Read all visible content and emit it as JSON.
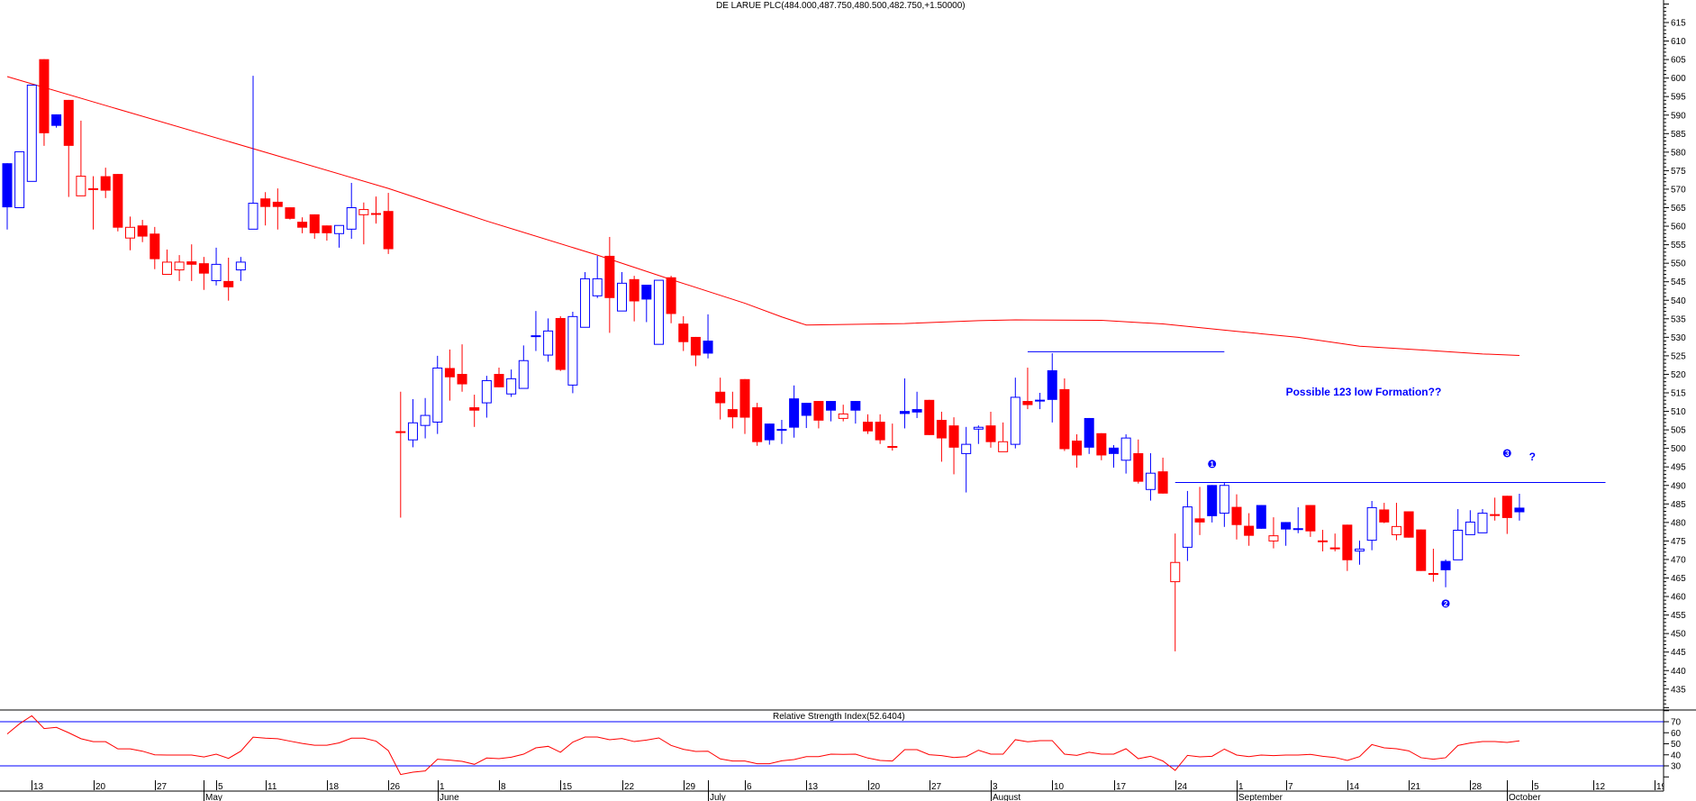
{
  "chart_data": {
    "type": "candlestick",
    "title": "DE LARUE PLC(484.000,487.750,480.500,482.750,+1.50000)",
    "colors": {
      "b": "#0000FF",
      "r": "#FF0000",
      "ma": "#FF0000",
      "rsi": "#FF0000",
      "lines": "#0000FF"
    },
    "price_axis": {
      "min": 435,
      "max": 615,
      "major_step": 5,
      "minor_step": 1,
      "position": "right"
    },
    "candles_fields": [
      "date",
      "open",
      "high",
      "low",
      "close",
      "color"
    ],
    "candles": [
      [
        "04-07",
        577.0,
        577.0,
        559.1,
        565.1,
        "b"
      ],
      [
        "04-08",
        565.0,
        580.1,
        565.0,
        580.1,
        "b"
      ],
      [
        "04-09",
        572.1,
        598.1,
        572.1,
        598.1,
        "b"
      ],
      [
        "04-14",
        605.1,
        605.1,
        581.7,
        585.1,
        "r"
      ],
      [
        "04-15",
        590.2,
        590.2,
        586.6,
        587.1,
        "b"
      ],
      [
        "04-16",
        594.1,
        594.1,
        567.9,
        581.7,
        "r"
      ],
      [
        "04-17",
        568.2,
        588.5,
        568.2,
        573.5,
        "r"
      ],
      [
        "04-20",
        570.0,
        573.5,
        559.1,
        569.9,
        "r"
      ],
      [
        "04-21",
        573.5,
        575.8,
        567.6,
        569.6,
        "r"
      ],
      [
        "04-22",
        574.1,
        574.1,
        558.6,
        559.6,
        "r"
      ],
      [
        "04-23",
        556.8,
        562.6,
        553.5,
        559.7,
        "r"
      ],
      [
        "04-24",
        560.2,
        561.7,
        555.7,
        557.2,
        "r"
      ],
      [
        "04-27",
        558.0,
        559.8,
        548.4,
        551.1,
        "r"
      ],
      [
        "04-28",
        547.0,
        553.7,
        547.0,
        550.3,
        "r"
      ],
      [
        "04-29",
        548.2,
        552.2,
        545.2,
        550.3,
        "r"
      ],
      [
        "04-30",
        550.5,
        555.1,
        545.2,
        549.6,
        "r"
      ],
      [
        "05-01",
        550.0,
        551.7,
        542.8,
        547.2,
        "r"
      ],
      [
        "05-05",
        545.3,
        554.2,
        544.0,
        549.7,
        "b"
      ],
      [
        "05-06",
        545.2,
        551.5,
        539.9,
        543.5,
        "r"
      ],
      [
        "05-07",
        548.2,
        551.7,
        545.2,
        550.3,
        "b"
      ],
      [
        "05-08",
        559.2,
        600.6,
        559.2,
        566.2,
        "b"
      ],
      [
        "05-11",
        567.5,
        569.2,
        560.2,
        565.2,
        "r"
      ],
      [
        "05-12",
        566.6,
        570.2,
        559.1,
        565.2,
        "r"
      ],
      [
        "05-13",
        565.1,
        565.1,
        561.8,
        562.0,
        "r"
      ],
      [
        "05-14",
        561.2,
        562.4,
        558.1,
        559.6,
        "r"
      ],
      [
        "05-15",
        563.2,
        563.2,
        556.6,
        558.1,
        "r"
      ],
      [
        "05-18",
        560.2,
        560.2,
        556.1,
        558.1,
        "r"
      ],
      [
        "05-19",
        558.0,
        560.2,
        554.2,
        560.2,
        "b"
      ],
      [
        "05-20",
        559.2,
        571.7,
        556.6,
        565.0,
        "b"
      ],
      [
        "05-21",
        563.1,
        566.4,
        555.1,
        564.5,
        "r"
      ],
      [
        "05-22",
        563.3,
        568.0,
        560.7,
        563.3,
        "r"
      ],
      [
        "05-26",
        564.1,
        569.0,
        552.5,
        553.8,
        "r"
      ],
      [
        "05-27",
        504.4,
        515.3,
        481.3,
        504.4,
        "r"
      ],
      [
        "05-28",
        502.3,
        513.3,
        500.3,
        506.9,
        "b"
      ],
      [
        "05-29",
        506.2,
        513.6,
        502.7,
        508.9,
        "b"
      ],
      [
        "06-01",
        507.1,
        525.0,
        503.9,
        521.7,
        "b"
      ],
      [
        "06-02",
        521.7,
        526.7,
        512.9,
        519.2,
        "r"
      ],
      [
        "06-03",
        520.1,
        528.1,
        515.3,
        517.3,
        "r"
      ],
      [
        "06-04",
        511.1,
        514.5,
        505.8,
        510.2,
        "r"
      ],
      [
        "06-05",
        512.3,
        519.6,
        508.3,
        518.3,
        "b"
      ],
      [
        "06-08",
        520.1,
        521.8,
        516.5,
        516.5,
        "r"
      ],
      [
        "06-09",
        514.7,
        521.3,
        513.9,
        518.8,
        "b"
      ],
      [
        "06-10",
        516.2,
        527.8,
        516.2,
        523.7,
        "b"
      ],
      [
        "06-11",
        530.3,
        537.1,
        526.3,
        530.3,
        "b"
      ],
      [
        "06-12",
        525.2,
        535.1,
        523.4,
        531.7,
        "b"
      ],
      [
        "06-15",
        535.2,
        535.7,
        520.9,
        521.2,
        "r"
      ],
      [
        "06-16",
        517.1,
        536.9,
        514.9,
        535.6,
        "b"
      ],
      [
        "06-17",
        532.7,
        547.6,
        532.7,
        545.8,
        "b"
      ],
      [
        "06-18",
        541.2,
        552.0,
        540.6,
        545.8,
        "b"
      ],
      [
        "06-19",
        552.0,
        557.1,
        531.2,
        540.6,
        "r"
      ],
      [
        "06-22",
        537.1,
        547.6,
        537.1,
        544.6,
        "b"
      ],
      [
        "06-23",
        545.7,
        546.6,
        534.3,
        539.7,
        "r"
      ],
      [
        "06-24",
        544.2,
        544.2,
        534.1,
        540.2,
        "b"
      ],
      [
        "06-25",
        528.1,
        545.4,
        528.1,
        545.4,
        "b"
      ],
      [
        "06-26",
        546.2,
        546.6,
        533.8,
        536.3,
        "r"
      ],
      [
        "06-29",
        533.7,
        535.7,
        526.3,
        528.7,
        "r"
      ],
      [
        "06-30",
        530.1,
        530.1,
        522.2,
        525.1,
        "r"
      ],
      [
        "07-01",
        529.1,
        536.2,
        524.3,
        525.6,
        "b"
      ],
      [
        "07-02",
        515.3,
        519.1,
        507.8,
        512.2,
        "r"
      ],
      [
        "07-03",
        510.6,
        515.3,
        505.4,
        508.4,
        "r"
      ],
      [
        "07-06",
        518.7,
        518.7,
        503.9,
        508.3,
        "r"
      ],
      [
        "07-07",
        511.1,
        512.3,
        500.7,
        501.7,
        "r"
      ],
      [
        "07-08",
        506.7,
        506.7,
        501.0,
        502.2,
        "b"
      ],
      [
        "07-09",
        505.0,
        507.7,
        501.2,
        505.0,
        "b"
      ],
      [
        "07-10",
        513.5,
        517.0,
        502.9,
        505.6,
        "b"
      ],
      [
        "07-13",
        512.3,
        512.3,
        505.5,
        508.8,
        "b"
      ],
      [
        "07-14",
        512.8,
        512.8,
        505.4,
        507.5,
        "r"
      ],
      [
        "07-15",
        512.8,
        512.8,
        507.3,
        510.2,
        "b"
      ],
      [
        "07-16",
        508.1,
        511.8,
        507.3,
        509.3,
        "r"
      ],
      [
        "07-17",
        512.8,
        512.8,
        506.7,
        510.2,
        "b"
      ],
      [
        "07-20",
        507.2,
        509.2,
        503.9,
        504.6,
        "r"
      ],
      [
        "07-21",
        507.2,
        509.2,
        501.2,
        502.2,
        "r"
      ],
      [
        "07-22",
        500.4,
        506.7,
        499.4,
        500.4,
        "r"
      ],
      [
        "07-23",
        510.1,
        518.9,
        505.4,
        509.3,
        "b"
      ],
      [
        "07-24",
        510.6,
        515.3,
        508.2,
        509.7,
        "b"
      ],
      [
        "07-27",
        513.1,
        513.1,
        503.6,
        503.6,
        "r"
      ],
      [
        "07-28",
        507.7,
        509.9,
        496.4,
        502.7,
        "r"
      ],
      [
        "07-29",
        506.2,
        508.4,
        493.0,
        500.2,
        "r"
      ],
      [
        "07-30",
        498.6,
        505.8,
        488.1,
        501.1,
        "b"
      ],
      [
        "07-31",
        505.2,
        506.2,
        501.2,
        505.7,
        "b"
      ],
      [
        "08-03",
        506.2,
        509.9,
        500.2,
        501.7,
        "r"
      ],
      [
        "08-04",
        499.1,
        507.0,
        499.1,
        501.8,
        "r"
      ],
      [
        "08-05",
        501.1,
        519.1,
        500.0,
        513.8,
        "b"
      ],
      [
        "08-06",
        512.8,
        521.8,
        510.6,
        511.7,
        "r"
      ],
      [
        "08-07",
        512.9,
        515.0,
        510.6,
        512.9,
        "b"
      ],
      [
        "08-10",
        521.1,
        525.7,
        507.0,
        513.1,
        "b"
      ],
      [
        "08-11",
        516.0,
        518.9,
        499.3,
        499.8,
        "r"
      ],
      [
        "08-12",
        502.1,
        503.8,
        494.8,
        498.1,
        "r"
      ],
      [
        "08-13",
        508.2,
        508.2,
        498.5,
        500.2,
        "b"
      ],
      [
        "08-14",
        504.1,
        504.1,
        496.8,
        498.1,
        "r"
      ],
      [
        "08-17",
        500.2,
        500.9,
        494.8,
        498.5,
        "b"
      ],
      [
        "08-18",
        496.8,
        503.8,
        493.2,
        502.8,
        "b"
      ],
      [
        "08-19",
        498.7,
        502.4,
        490.5,
        491.0,
        "r"
      ],
      [
        "08-20",
        488.9,
        498.7,
        485.9,
        493.3,
        "b"
      ],
      [
        "08-21",
        493.8,
        497.5,
        487.8,
        487.8,
        "r"
      ],
      [
        "08-24",
        464.0,
        477.0,
        445.2,
        469.2,
        "r"
      ],
      [
        "08-25",
        473.3,
        488.5,
        469.6,
        484.2,
        "b"
      ],
      [
        "08-26",
        481.1,
        489.6,
        476.6,
        480.0,
        "r"
      ],
      [
        "08-27",
        490.1,
        490.1,
        480.0,
        481.7,
        "b"
      ],
      [
        "08-28",
        482.5,
        490.9,
        478.8,
        490.0,
        "b"
      ],
      [
        "09-01",
        484.2,
        487.6,
        475.4,
        479.3,
        "r"
      ],
      [
        "09-02",
        479.1,
        482.5,
        473.7,
        476.4,
        "r"
      ],
      [
        "09-03",
        484.7,
        484.7,
        478.3,
        478.3,
        "b"
      ],
      [
        "09-04",
        475.0,
        481.4,
        473.0,
        476.4,
        "r"
      ],
      [
        "09-07",
        480.1,
        480.1,
        473.7,
        478.1,
        "b"
      ],
      [
        "09-08",
        478.2,
        484.1,
        477.1,
        478.6,
        "b"
      ],
      [
        "09-09",
        484.7,
        484.7,
        476.1,
        477.6,
        "r"
      ],
      [
        "09-10",
        474.9,
        478.0,
        472.2,
        474.9,
        "r"
      ],
      [
        "09-11",
        473.0,
        477.0,
        472.2,
        473.0,
        "r"
      ],
      [
        "09-14",
        479.4,
        479.4,
        466.9,
        469.8,
        "r"
      ],
      [
        "09-15",
        472.3,
        475.1,
        468.6,
        472.8,
        "b"
      ],
      [
        "09-16",
        475.2,
        485.8,
        472.5,
        484.0,
        "b"
      ],
      [
        "09-17",
        483.5,
        485.3,
        479.8,
        480.0,
        "r"
      ],
      [
        "09-18",
        476.7,
        485.3,
        475.2,
        478.9,
        "r"
      ],
      [
        "09-21",
        483.0,
        483.0,
        475.9,
        475.9,
        "r"
      ],
      [
        "09-22",
        478.1,
        478.1,
        466.9,
        466.9,
        "r"
      ],
      [
        "09-23",
        466.1,
        472.9,
        464.0,
        466.1,
        "r"
      ],
      [
        "09-24",
        469.6,
        470.0,
        462.5,
        467.1,
        "b"
      ],
      [
        "09-25",
        469.9,
        483.6,
        469.9,
        477.9,
        "b"
      ],
      [
        "09-28",
        476.7,
        483.3,
        476.7,
        480.1,
        "b"
      ],
      [
        "09-29",
        477.2,
        483.6,
        477.2,
        482.5,
        "b"
      ],
      [
        "09-30",
        482.0,
        486.7,
        480.5,
        482.0,
        "r"
      ],
      [
        "10-01",
        487.2,
        487.2,
        476.9,
        481.2,
        "r"
      ],
      [
        "10-02",
        484.0,
        487.75,
        480.5,
        482.75,
        "b"
      ]
    ],
    "moving_average": [
      [
        "04-07",
        600.4
      ],
      [
        "04-21",
        592.6
      ],
      [
        "05-12",
        579.0
      ],
      [
        "05-26",
        570.2
      ],
      [
        "06-05",
        561.4
      ],
      [
        "06-18",
        552.2
      ],
      [
        "06-26",
        545.6
      ],
      [
        "07-06",
        539.2
      ],
      [
        "07-09",
        535.5
      ],
      [
        "07-13",
        533.3
      ],
      [
        "07-23",
        533.7
      ],
      [
        "07-31",
        534.5
      ],
      [
        "08-05",
        534.7
      ],
      [
        "08-14",
        534.6
      ],
      [
        "08-21",
        533.6
      ],
      [
        "08-26",
        532.6
      ],
      [
        "09-01",
        531.6
      ],
      [
        "09-08",
        530.0
      ],
      [
        "09-15",
        527.6
      ],
      [
        "09-22",
        526.6
      ],
      [
        "09-29",
        525.5
      ],
      [
        "10-02",
        525.1
      ]
    ],
    "trend_lines": [
      {
        "price": 526.1,
        "from": "08-06",
        "to": "08-28"
      },
      {
        "price": 490.8,
        "from": "08-24",
        "to": "10-13"
      }
    ],
    "annotations": {
      "note": {
        "text": "Possible 123 low Formation??",
        "date": "09-07",
        "price": 515.2
      },
      "markers": [
        {
          "label": "1",
          "date": "08-27",
          "price": 495.8
        },
        {
          "label": "2",
          "date": "09-24",
          "price": 458.1
        },
        {
          "label": "3",
          "date": "10-01",
          "price": 498.7
        }
      ],
      "question": {
        "text": "?",
        "date": "10-05",
        "price": 497.7
      }
    },
    "rsi": {
      "title": "Relative Strength Index(52.6404)",
      "levels": [
        70,
        30
      ],
      "tick_labels": [
        70,
        60,
        50,
        40,
        30
      ],
      "values": [
        58.9,
        68.1,
        75.4,
        63.8,
        64.9,
        60.0,
        54.6,
        51.9,
        51.9,
        45.4,
        45.4,
        43.3,
        40.0,
        39.8,
        39.8,
        39.8,
        38.1,
        40.6,
        36.8,
        43.3,
        56.0,
        55.1,
        54.6,
        52.4,
        50.3,
        48.7,
        48.7,
        50.8,
        55.1,
        55.1,
        52.4,
        43.8,
        22.2,
        24.3,
        25.4,
        36.0,
        35.2,
        34.1,
        31.4,
        37.1,
        36.5,
        37.9,
        40.6,
        46.3,
        47.7,
        42.3,
        51.5,
        56.1,
        56.1,
        53.7,
        54.8,
        52.0,
        53.4,
        55.3,
        48.5,
        45.0,
        43.1,
        43.3,
        36.3,
        34.4,
        34.4,
        31.9,
        31.9,
        34.6,
        35.7,
        38.4,
        38.4,
        40.6,
        40.4,
        40.6,
        37.1,
        34.9,
        34.4,
        44.7,
        44.7,
        40.1,
        39.3,
        37.6,
        38.4,
        44.2,
        40.6,
        40.6,
        53.7,
        51.8,
        52.9,
        52.9,
        40.6,
        39.5,
        42.3,
        40.6,
        40.6,
        45.5,
        36.5,
        38.7,
        34.4,
        25.9,
        39.5,
        38.2,
        38.7,
        45.2,
        39.8,
        38.4,
        39.8,
        39.3,
        39.8,
        39.8,
        40.4,
        38.7,
        37.6,
        34.9,
        38.4,
        49.3,
        46.3,
        45.5,
        43.6,
        37.4,
        36.0,
        37.4,
        48.5,
        50.7,
        52.0,
        52.0,
        51.2,
        52.64
      ]
    },
    "day_ticks": [
      {
        "label": "13",
        "date": "04-13"
      },
      {
        "label": "20",
        "date": "04-20"
      },
      {
        "label": "27",
        "date": "04-27"
      },
      {
        "label": "5",
        "date": "05-05"
      },
      {
        "label": "11",
        "date": "05-11"
      },
      {
        "label": "18",
        "date": "05-18"
      },
      {
        "label": "26",
        "date": "05-26"
      },
      {
        "label": "1",
        "date": "06-01"
      },
      {
        "label": "8",
        "date": "06-08"
      },
      {
        "label": "15",
        "date": "06-15"
      },
      {
        "label": "22",
        "date": "06-22"
      },
      {
        "label": "29",
        "date": "06-29"
      },
      {
        "label": "6",
        "date": "07-06"
      },
      {
        "label": "13",
        "date": "07-13"
      },
      {
        "label": "20",
        "date": "07-20"
      },
      {
        "label": "27",
        "date": "07-27"
      },
      {
        "label": "3",
        "date": "08-03"
      },
      {
        "label": "10",
        "date": "08-10"
      },
      {
        "label": "17",
        "date": "08-17"
      },
      {
        "label": "24",
        "date": "08-24"
      },
      {
        "label": "1",
        "date": "09-01"
      },
      {
        "label": "7",
        "date": "09-07"
      },
      {
        "label": "14",
        "date": "09-14"
      },
      {
        "label": "21",
        "date": "09-21"
      },
      {
        "label": "28",
        "date": "09-28"
      },
      {
        "label": "5",
        "date": "10-05"
      },
      {
        "label": "12",
        "date": "10-12"
      },
      {
        "label": "19",
        "date": "10-19"
      }
    ],
    "month_ticks": [
      {
        "label": "May",
        "date": "05-01"
      },
      {
        "label": "June",
        "date": "06-01"
      },
      {
        "label": "July",
        "date": "07-01"
      },
      {
        "label": "August",
        "date": "08-03"
      },
      {
        "label": "September",
        "date": "09-01"
      },
      {
        "label": "October",
        "date": "10-01"
      }
    ]
  }
}
